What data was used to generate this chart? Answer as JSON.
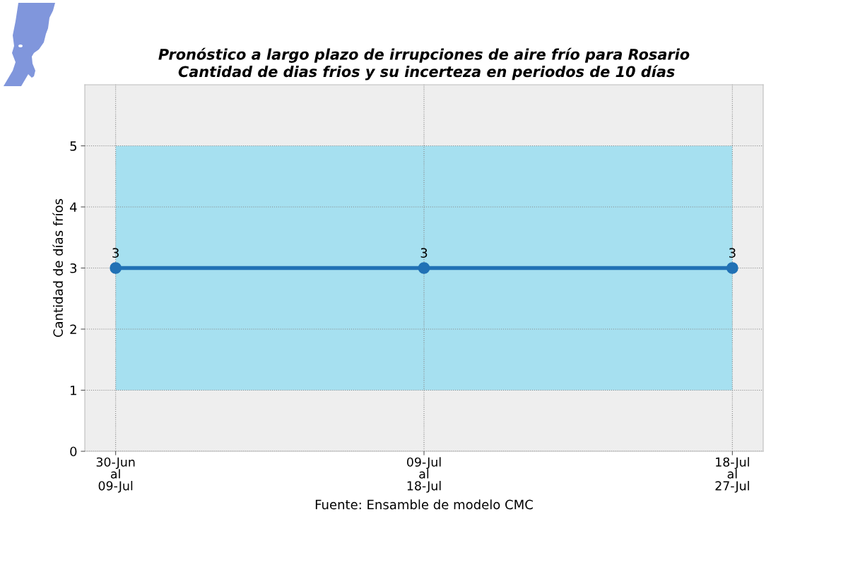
{
  "chart_data": {
    "type": "line",
    "title": "Pronóstico a largo plazo de irrupciones de aire frío para Rosario\n Cantidad de dias frios y su incerteza en periodos de 10 días",
    "ylabel": "Cantidad de días fríos",
    "categories": [
      "30-Jun\nal\n09-Jul",
      "09-Jul\nal\n18-Jul",
      "18-Jul\nal\n27-Jul"
    ],
    "series": [
      {
        "color": "#2171b5",
        "values": [
          3,
          3,
          3
        ],
        "lower": [
          1,
          1,
          1
        ],
        "upper": [
          5,
          5,
          5
        ]
      }
    ],
    "ylim": [
      0,
      6
    ],
    "yticks": [
      0,
      1,
      2,
      3,
      4,
      5
    ],
    "grid": true,
    "marker": "circle",
    "line_style": "solid",
    "data_labels": true,
    "annotations": [
      "Fuente: Ensamble de modelo CMC"
    ]
  }
}
